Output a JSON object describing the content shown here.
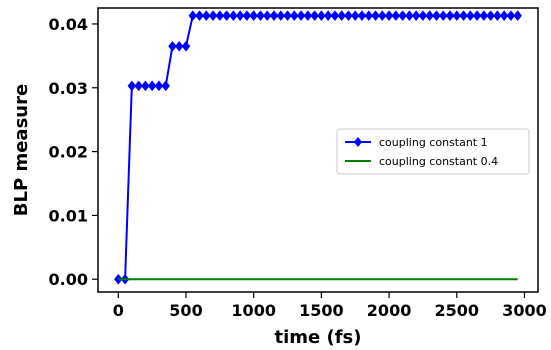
{
  "chart_data": {
    "type": "line",
    "title": "",
    "xlabel": "time (fs)",
    "ylabel": "BLP measure",
    "xlim": [
      -150,
      3100
    ],
    "ylim": [
      -0.002,
      0.0425
    ],
    "x_ticks": [
      0,
      500,
      1000,
      1500,
      2000,
      2500,
      3000
    ],
    "x_tick_labels": [
      "0",
      "500",
      "1000",
      "1500",
      "2000",
      "2500",
      "3000"
    ],
    "y_ticks": [
      0.0,
      0.01,
      0.02,
      0.03,
      0.04
    ],
    "y_tick_labels": [
      "0.00",
      "0.01",
      "0.02",
      "0.03",
      "0.04"
    ],
    "grid": false,
    "legend_position": "center-right",
    "series": [
      {
        "name": "coupling constant 1",
        "color": "#0000ff",
        "marker": "diamond",
        "x": [
          0,
          50,
          100,
          150,
          200,
          250,
          300,
          350,
          400,
          450,
          500,
          550,
          600,
          650,
          700,
          750,
          800,
          850,
          900,
          950,
          1000,
          1050,
          1100,
          1150,
          1200,
          1250,
          1300,
          1350,
          1400,
          1450,
          1500,
          1550,
          1600,
          1650,
          1700,
          1750,
          1800,
          1850,
          1900,
          1950,
          2000,
          2050,
          2100,
          2150,
          2200,
          2250,
          2300,
          2350,
          2400,
          2450,
          2500,
          2550,
          2600,
          2650,
          2700,
          2750,
          2800,
          2850,
          2900,
          2950
        ],
        "y": [
          0.0,
          0.0,
          0.0303,
          0.0303,
          0.0303,
          0.0303,
          0.0303,
          0.0303,
          0.0365,
          0.0365,
          0.0365,
          0.0413,
          0.0413,
          0.0413,
          0.0413,
          0.0413,
          0.0413,
          0.0413,
          0.0413,
          0.0413,
          0.0413,
          0.0413,
          0.0413,
          0.0413,
          0.0413,
          0.0413,
          0.0413,
          0.0413,
          0.0413,
          0.0413,
          0.0413,
          0.0413,
          0.0413,
          0.0413,
          0.0413,
          0.0413,
          0.0413,
          0.0413,
          0.0413,
          0.0413,
          0.0413,
          0.0413,
          0.0413,
          0.0413,
          0.0413,
          0.0413,
          0.0413,
          0.0413,
          0.0413,
          0.0413,
          0.0413,
          0.0413,
          0.0413,
          0.0413,
          0.0413,
          0.0413,
          0.0413,
          0.0413,
          0.0413,
          0.0413
        ]
      },
      {
        "name": "coupling constant 0.4",
        "color": "#008000",
        "marker": "none",
        "x": [
          0,
          2950
        ],
        "y": [
          0.0,
          0.0
        ]
      }
    ]
  }
}
